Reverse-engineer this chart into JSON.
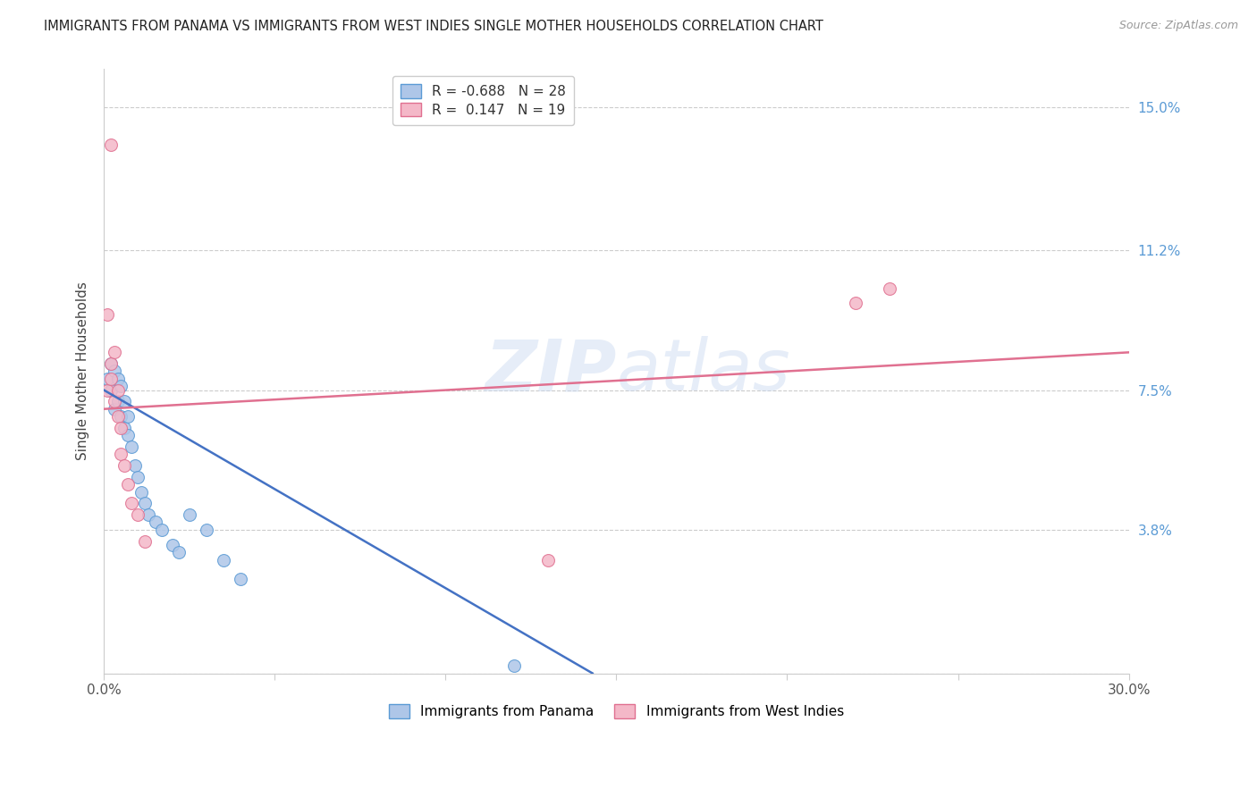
{
  "title": "IMMIGRANTS FROM PANAMA VS IMMIGRANTS FROM WEST INDIES SINGLE MOTHER HOUSEHOLDS CORRELATION CHART",
  "source": "Source: ZipAtlas.com",
  "ylabel": "Single Mother Households",
  "xlim": [
    0.0,
    0.3
  ],
  "ylim": [
    0.0,
    0.16
  ],
  "xtick_vals": [
    0.0,
    0.05,
    0.1,
    0.15,
    0.2,
    0.25,
    0.3
  ],
  "xtick_labels": [
    "0.0%",
    "",
    "",
    "",
    "",
    "",
    "30.0%"
  ],
  "ytick_vals": [
    0.0,
    0.038,
    0.075,
    0.112,
    0.15
  ],
  "ytick_labels": [
    "",
    "3.8%",
    "7.5%",
    "11.2%",
    "15.0%"
  ],
  "right_ytick_color": "#5b9bd5",
  "grid_color": "#cccccc",
  "panama_color": "#aec6e8",
  "panama_edge_color": "#5b9bd5",
  "westindies_color": "#f4b8c8",
  "westindies_edge_color": "#e07090",
  "panama_line_color": "#4472c4",
  "westindies_line_color": "#e07090",
  "panama_R": -0.688,
  "panama_N": 28,
  "westindies_R": 0.147,
  "westindies_N": 19,
  "panama_x": [
    0.001,
    0.002,
    0.002,
    0.003,
    0.003,
    0.004,
    0.004,
    0.005,
    0.005,
    0.006,
    0.006,
    0.007,
    0.007,
    0.008,
    0.009,
    0.01,
    0.011,
    0.012,
    0.013,
    0.015,
    0.017,
    0.02,
    0.022,
    0.025,
    0.03,
    0.035,
    0.04,
    0.12
  ],
  "panama_y": [
    0.078,
    0.082,
    0.075,
    0.08,
    0.07,
    0.078,
    0.072,
    0.076,
    0.068,
    0.072,
    0.065,
    0.068,
    0.063,
    0.06,
    0.055,
    0.052,
    0.048,
    0.045,
    0.042,
    0.04,
    0.038,
    0.034,
    0.032,
    0.042,
    0.038,
    0.03,
    0.025,
    0.002
  ],
  "westindies_x": [
    0.001,
    0.001,
    0.002,
    0.002,
    0.003,
    0.003,
    0.004,
    0.004,
    0.005,
    0.005,
    0.006,
    0.007,
    0.008,
    0.01,
    0.012,
    0.002,
    0.13,
    0.22,
    0.23
  ],
  "westindies_y": [
    0.095,
    0.075,
    0.082,
    0.078,
    0.085,
    0.072,
    0.068,
    0.075,
    0.065,
    0.058,
    0.055,
    0.05,
    0.045,
    0.042,
    0.035,
    0.14,
    0.03,
    0.098,
    0.102
  ],
  "marker_size": 100,
  "panama_line_x": [
    0.0,
    0.143
  ],
  "panama_line_y": [
    0.075,
    0.0
  ],
  "westindies_line_x": [
    0.0,
    0.3
  ],
  "westindies_line_y": [
    0.07,
    0.085
  ]
}
